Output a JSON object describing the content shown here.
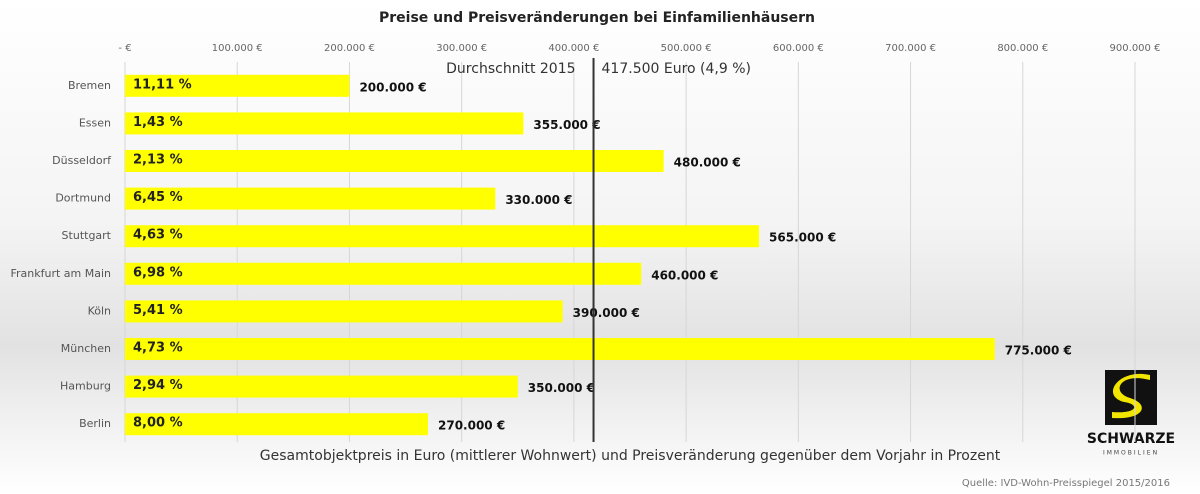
{
  "chart_data": {
    "type": "hbar",
    "title": "Preise und Preisveränderungen bei Einfamilienhäusern",
    "categories": [
      "Bremen",
      "Essen",
      "Düsseldorf",
      "Dortmund",
      "Stuttgart",
      "Frankfurt am Main",
      "Köln",
      "München",
      "Hamburg",
      "Berlin"
    ],
    "values": [
      200000,
      355000,
      480000,
      330000,
      565000,
      460000,
      390000,
      775000,
      350000,
      270000
    ],
    "value_labels": [
      "200.000 €",
      "355.000 €",
      "480.000 €",
      "330.000 €",
      "565.000 €",
      "460.000 €",
      "390.000 €",
      "775.000 €",
      "350.000 €",
      "270.000 €"
    ],
    "change_values": [
      11.11,
      1.43,
      2.13,
      6.45,
      4.63,
      6.98,
      5.41,
      4.73,
      2.94,
      8.0
    ],
    "change_labels": [
      "11,11 %",
      "1,43 %",
      "2,13 %",
      "6,45 %",
      "4,63 %",
      "6,98 %",
      "5,41 %",
      "4,73 %",
      "2,94 %",
      "8,00 %"
    ],
    "color": "#ffff00",
    "xlim": [
      0,
      900000
    ],
    "xticks": [
      {
        "value": 0,
        "label": "- €"
      },
      {
        "value": 100000,
        "label": "100.000 €"
      },
      {
        "value": 200000,
        "label": "200.000 €"
      },
      {
        "value": 300000,
        "label": "300.000 €"
      },
      {
        "value": 400000,
        "label": "400.000 €"
      },
      {
        "value": 500000,
        "label": "500.000 €"
      },
      {
        "value": 600000,
        "label": "600.000 €"
      },
      {
        "value": 700000,
        "label": "700.000 €"
      },
      {
        "value": 800000,
        "label": "800.000 €"
      },
      {
        "value": 900000,
        "label": "900.000 €"
      }
    ],
    "grid": true,
    "average": {
      "text": "Durchschnitt 2015",
      "value": 417500,
      "label": "417.500 Euro (4,9 %)"
    },
    "xlabel": "Gesamtobjektpreis in Euro (mittlerer Wohnwert) und Preisveränderung gegenüber dem Vorjahr in Prozent",
    "source": "Quelle: IVD-Wohn-Preisspiegel 2015/2016"
  },
  "logo": {
    "name": "SCHWARZE",
    "subtitle": "IMMOBILIEN"
  }
}
